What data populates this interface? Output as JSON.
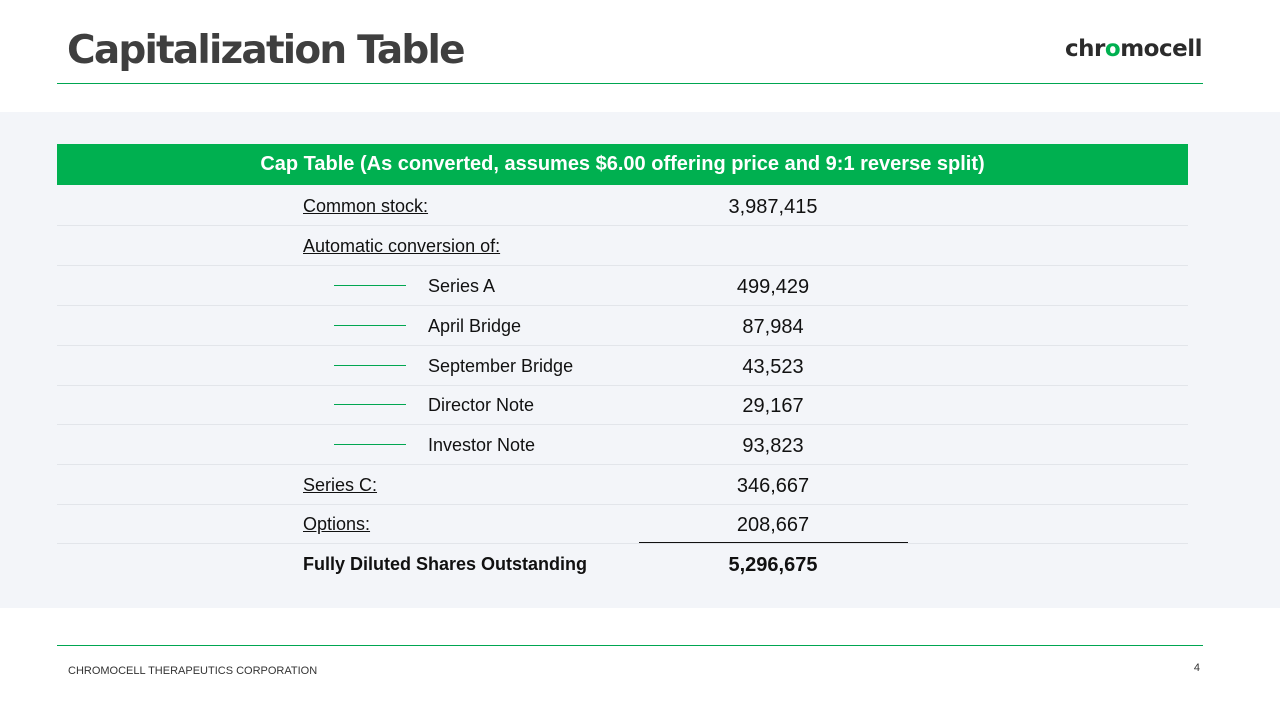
{
  "slide": {
    "title": "Capitalization Table",
    "logo": {
      "part1": "chr",
      "part2": "o",
      "part3": "mocell"
    },
    "footer": "CHROMOCELL THERAPEUTICS CORPORATION",
    "page_number": "4"
  },
  "table": {
    "header": "Cap Table (As converted, assumes $6.00 offering price and 9:1 reverse split)",
    "rows": [
      {
        "label": "Common stock:",
        "value": "3,987,415"
      },
      {
        "label": "Automatic conversion of:",
        "value": ""
      },
      {
        "label": "Series A",
        "value": "499,429"
      },
      {
        "label": "April Bridge",
        "value": "87,984"
      },
      {
        "label": "September Bridge",
        "value": "43,523"
      },
      {
        "label": "Director Note",
        "value": "29,167"
      },
      {
        "label": "Investor Note",
        "value": "93,823"
      },
      {
        "label": "Series C:",
        "value": "346,667"
      },
      {
        "label": "Options:",
        "value": "208,667"
      },
      {
        "label": "Fully Diluted Shares Outstanding",
        "value": "5,296,675"
      }
    ]
  },
  "colors": {
    "accent": "#00b050",
    "panel": "#f3f5f9",
    "title": "#3f3f3f"
  }
}
